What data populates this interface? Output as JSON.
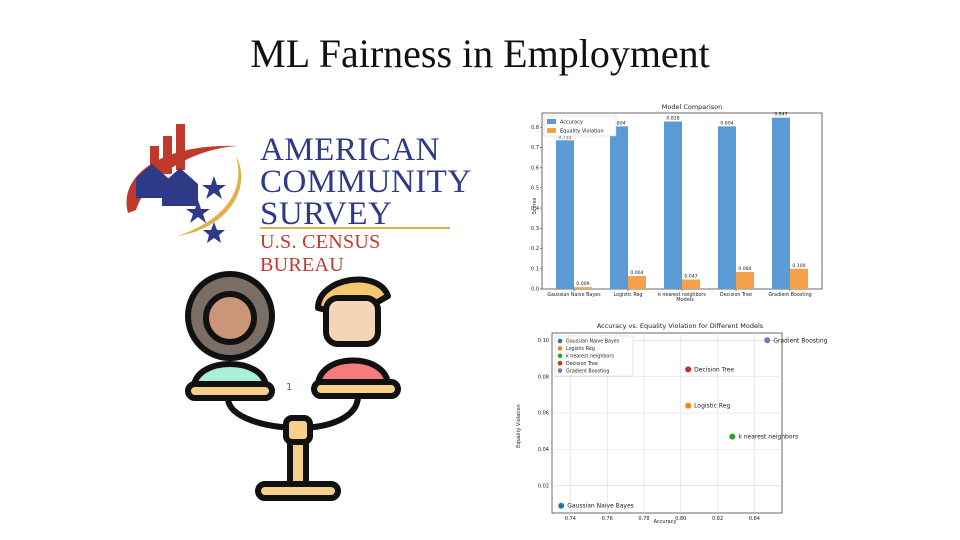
{
  "slide": {
    "title": "ML Fairness in Employment"
  },
  "logo": {
    "line1": "AMERICAN",
    "line2": "COMMUNITY",
    "line3": "SURVEY",
    "line4": "U.S. CENSUS BUREAU"
  },
  "colors": {
    "accuracy": "#5b9bd5",
    "violation": "#f5a04a",
    "blue": "#1f77b4",
    "orange": "#ff7f0e",
    "green": "#2ca02c",
    "red": "#d62728",
    "purple": "#9467bd"
  },
  "chart_data": [
    {
      "type": "bar",
      "title": "Model Comparison",
      "xlabel": "Models",
      "ylabel": "Scores",
      "categories": [
        "Gaussian Naive Bayes",
        "Logistic Reg",
        "k nearest neighbors",
        "Decision Tree",
        "Gradient Boosting"
      ],
      "series": [
        {
          "name": "Accuracy",
          "values": [
            0.735,
            0.804,
            0.828,
            0.804,
            0.847
          ],
          "labels": [
            "0.735",
            "0.804",
            "0.828",
            "0.804",
            "0.847"
          ]
        },
        {
          "name": "Equality Violation",
          "values": [
            0.009,
            0.064,
            0.047,
            0.084,
            0.1
          ],
          "labels": [
            "0.009",
            "0.064",
            "0.047",
            "0.084",
            "0.100"
          ]
        }
      ],
      "ylim": [
        0,
        0.87
      ],
      "yticks": [
        "0.0",
        "0.1",
        "0.2",
        "0.3",
        "0.4",
        "0.5",
        "0.6",
        "0.7",
        "0.8"
      ],
      "legend": "top-left",
      "grid": false
    },
    {
      "type": "scatter",
      "title": "Accuracy vs. Equality Violation for Different Models",
      "xlabel": "Accuracy",
      "ylabel": "Equality Violation",
      "series": [
        {
          "name": "Gaussian Naive Bayes",
          "x": 0.735,
          "y": 0.009
        },
        {
          "name": "Logistic Reg",
          "x": 0.804,
          "y": 0.064
        },
        {
          "name": "k nearest neighbors",
          "x": 0.828,
          "y": 0.047
        },
        {
          "name": "Decision Tree",
          "x": 0.804,
          "y": 0.084
        },
        {
          "name": "Gradient Boosting",
          "x": 0.847,
          "y": 0.1
        }
      ],
      "xlim": [
        0.73,
        0.855
      ],
      "ylim": [
        0.005,
        0.104
      ],
      "xticks": [
        "0.74",
        "0.76",
        "0.78",
        "0.80",
        "0.82",
        "0.84"
      ],
      "yticks": [
        "0.02",
        "0.04",
        "0.06",
        "0.08",
        "0.10"
      ],
      "legend": "top-left",
      "grid": true
    }
  ]
}
